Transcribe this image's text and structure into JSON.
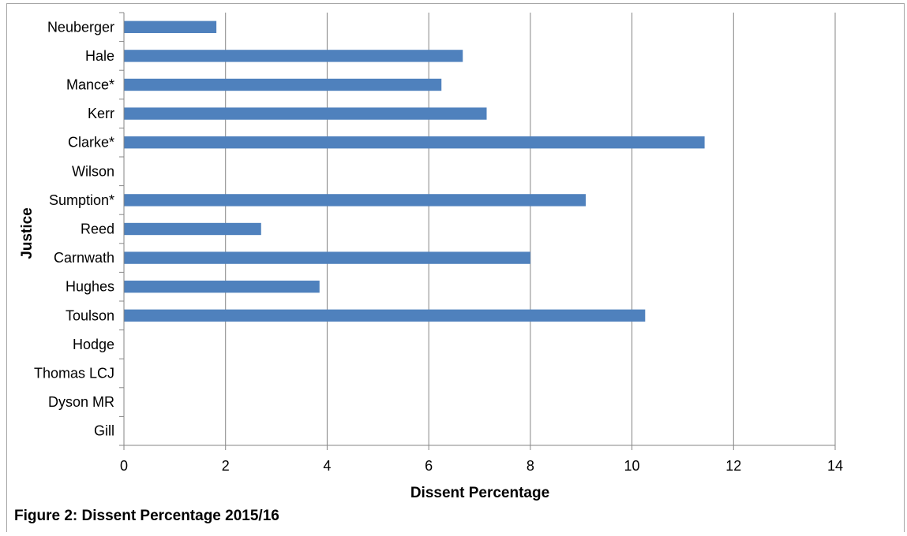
{
  "chart_data": {
    "type": "bar",
    "orientation": "horizontal",
    "categories": [
      "Neuberger",
      "Hale",
      "Mance*",
      "Kerr",
      "Clarke*",
      "Wilson",
      "Sumption*",
      "Reed",
      "Carnwath",
      "Hughes",
      "Toulson",
      "Hodge",
      "Thomas LCJ",
      "Dyson MR",
      "Gill"
    ],
    "values": [
      1.82,
      6.67,
      6.25,
      7.14,
      11.43,
      0,
      9.09,
      2.7,
      8.0,
      3.85,
      10.26,
      0,
      0,
      0,
      0
    ],
    "xlabel": "Dissent Percentage",
    "ylabel": "Justice",
    "xlim": [
      0,
      14
    ],
    "xticks": [
      0,
      2,
      4,
      6,
      8,
      10,
      12,
      14
    ],
    "grid": "vertical",
    "legend": "none",
    "colors": {
      "bar": "#4f81bd",
      "grid": "#868686",
      "axis": "#868686",
      "border": "#a6a6a6"
    }
  },
  "caption": "Figure 2: Dissent Percentage 2015/16"
}
